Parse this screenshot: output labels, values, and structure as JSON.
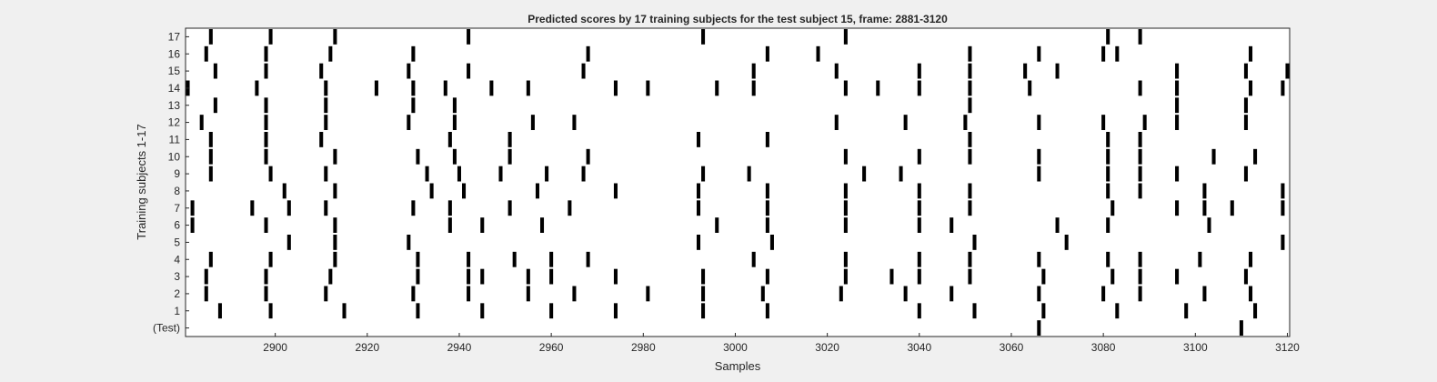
{
  "chart_data": {
    "type": "raster",
    "title": "Predicted scores by 17 training subjects for the test subject 15, frame: 2881-3120",
    "xlabel": "Samples",
    "ylabel": "Training subjects 1-17",
    "xlim": [
      2881,
      3120
    ],
    "x_ticks": [
      2900,
      2920,
      2940,
      2960,
      2980,
      3000,
      3020,
      3040,
      3060,
      3080,
      3100,
      3120
    ],
    "rows": [
      "(Test)",
      "1",
      "2",
      "3",
      "4",
      "5",
      "6",
      "7",
      "8",
      "9",
      "10",
      "11",
      "12",
      "13",
      "14",
      "15",
      "16",
      "17"
    ],
    "mark_color": "#000000",
    "events": {
      "17": [
        2886,
        2899,
        2913,
        2942,
        2993,
        3024,
        3081,
        3088
      ],
      "16": [
        2885,
        2898,
        2912,
        2930,
        2968,
        3007,
        3018,
        3051,
        3066,
        3080,
        3083,
        3112
      ],
      "15": [
        2887,
        2898,
        2910,
        2929,
        2942,
        2967,
        3004,
        3022,
        3040,
        3051,
        3063,
        3070,
        3096,
        3111,
        3120
      ],
      "14": [
        2881,
        2896,
        2911,
        2922,
        2930,
        2937,
        2947,
        2955,
        2974,
        2981,
        2996,
        3004,
        3024,
        3031,
        3040,
        3051,
        3064,
        3088,
        3096,
        3112,
        3119
      ],
      "13": [
        2887,
        2898,
        2911,
        2930,
        2939,
        3051,
        3096,
        3111
      ],
      "12": [
        2884,
        2898,
        2911,
        2929,
        2939,
        2956,
        2965,
        3022,
        3037,
        3050,
        3066,
        3080,
        3089,
        3096,
        3111
      ],
      "11": [
        2886,
        2898,
        2910,
        2938,
        2951,
        2992,
        3007,
        3051,
        3081,
        3088
      ],
      "10": [
        2886,
        2898,
        2913,
        2931,
        2939,
        2951,
        2968,
        3024,
        3040,
        3051,
        3066,
        3081,
        3088,
        3104,
        3113
      ],
      "9": [
        2886,
        2899,
        2911,
        2933,
        2940,
        2949,
        2959,
        2967,
        2993,
        3003,
        3028,
        3036,
        3066,
        3081,
        3088,
        3096,
        3111
      ],
      "8": [
        2902,
        2913,
        2934,
        2941,
        2957,
        2974,
        2992,
        3007,
        3024,
        3040,
        3051,
        3081,
        3088,
        3102,
        3119
      ],
      "7": [
        2882,
        2895,
        2903,
        2911,
        2930,
        2938,
        2951,
        2964,
        2992,
        3007,
        3024,
        3040,
        3051,
        3082,
        3096,
        3102,
        3108,
        3119
      ],
      "6": [
        2882,
        2898,
        2913,
        2938,
        2945,
        2958,
        2996,
        3007,
        3024,
        3040,
        3047,
        3070,
        3081,
        3103
      ],
      "5": [
        2903,
        2913,
        2929,
        2992,
        3008,
        3052,
        3072,
        3119
      ],
      "4": [
        2886,
        2899,
        2913,
        2931,
        2942,
        2952,
        2960,
        2968,
        3004,
        3024,
        3040,
        3051,
        3066,
        3081,
        3088,
        3101,
        3112
      ],
      "3": [
        2885,
        2898,
        2912,
        2931,
        2942,
        2945,
        2955,
        2960,
        2974,
        2993,
        3007,
        3024,
        3034,
        3040,
        3051,
        3067,
        3082,
        3088,
        3096,
        3111
      ],
      "2": [
        2885,
        2898,
        2911,
        2930,
        2942,
        2955,
        2965,
        2981,
        2993,
        3006,
        3023,
        3037,
        3047,
        3066,
        3080,
        3088,
        3102,
        3112
      ],
      "1": [
        2888,
        2899,
        2915,
        2931,
        2945,
        2960,
        2974,
        2993,
        3007,
        3040,
        3052,
        3067,
        3083,
        3098,
        3113
      ],
      "(Test)": [
        3066,
        3110
      ]
    }
  }
}
